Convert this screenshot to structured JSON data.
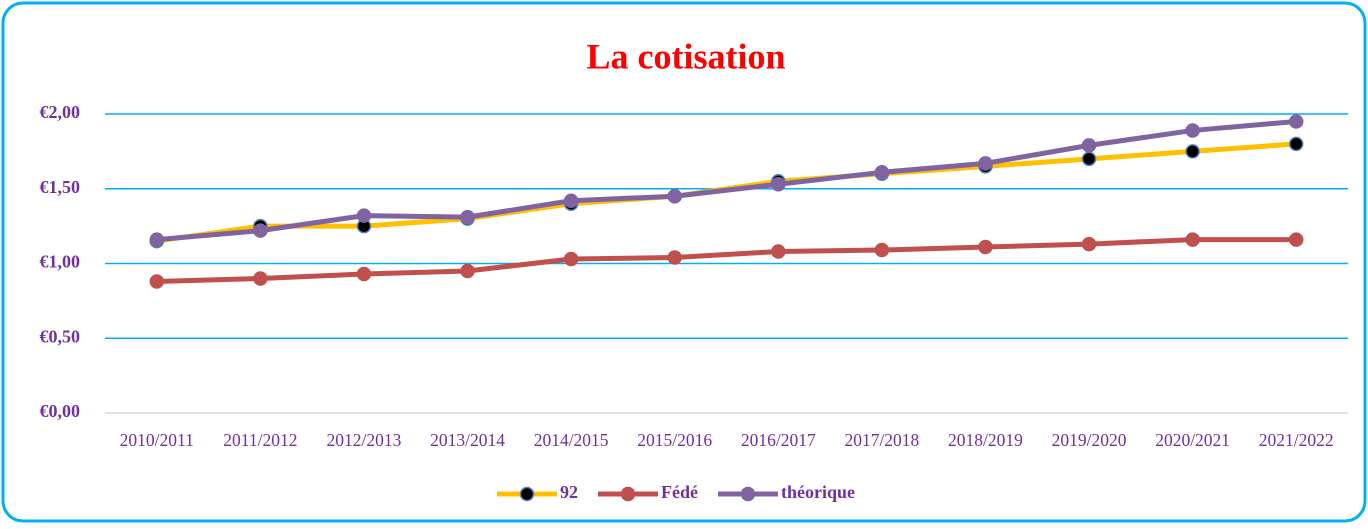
{
  "chart_data": {
    "type": "line",
    "title": "La cotisation",
    "categories": [
      "2010/2011",
      "2011/2012",
      "2012/2013",
      "2013/2014",
      "2014/2015",
      "2015/2016",
      "2016/2017",
      "2017/2018",
      "2018/2019",
      "2019/2020",
      "2020/2021",
      "2021/2022"
    ],
    "series": [
      {
        "name": "92",
        "color": "#ffc000",
        "marker_color": "#000000",
        "values": [
          1.15,
          1.25,
          1.25,
          1.3,
          1.4,
          1.45,
          1.55,
          1.6,
          1.65,
          1.7,
          1.75,
          1.8
        ]
      },
      {
        "name": "Fédé",
        "color": "#c0504d",
        "marker_color": "#c0504d",
        "values": [
          0.88,
          0.9,
          0.93,
          0.95,
          1.03,
          1.04,
          1.08,
          1.09,
          1.11,
          1.13,
          1.16,
          1.16
        ]
      },
      {
        "name": "théorique",
        "color": "#8064a2",
        "marker_color": "#8064a2",
        "values": [
          1.16,
          1.22,
          1.32,
          1.31,
          1.42,
          1.45,
          1.53,
          1.61,
          1.67,
          1.79,
          1.89,
          1.95
        ]
      }
    ],
    "ylim": [
      0,
      2
    ],
    "yticks": [
      {
        "value": 0,
        "label": "€0,00"
      },
      {
        "value": 0.5,
        "label": "€0,50"
      },
      {
        "value": 1,
        "label": "€1,00"
      },
      {
        "value": 1.5,
        "label": "€1,50"
      },
      {
        "value": 2,
        "label": "€2,00"
      }
    ],
    "grid": true,
    "legend": "bottom"
  }
}
